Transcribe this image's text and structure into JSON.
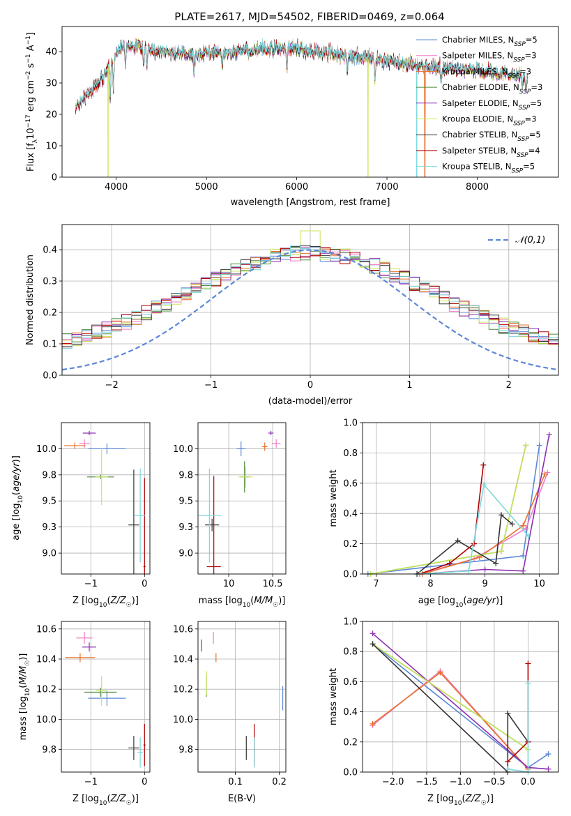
{
  "figure": {
    "title": "PLATE=2617, MJD=54502, FIBERID=0469, z=0.064",
    "series_colors": [
      "#5b87d6",
      "#f07cc4",
      "#e8702a",
      "#4f8a3a",
      "#8b2fb0",
      "#c8e65a",
      "#333333",
      "#b00000",
      "#7dd8dc"
    ]
  },
  "chart_data": [
    {
      "id": "spectrum",
      "type": "line",
      "title": "PLATE=2617, MJD=54502, FIBERID=0469, z=0.064",
      "xlabel": "wavelength [Angstrom, rest frame]",
      "ylabel": "Flux [f_λ 10^-17 erg cm^-2 s^-1 A^-1]",
      "xlim": [
        3400,
        8900
      ],
      "ylim": [
        0,
        48
      ],
      "xticks": [
        4000,
        5000,
        6000,
        7000,
        8000
      ],
      "yticks": [
        0,
        10,
        20,
        30,
        40
      ],
      "legend_position": "top-right",
      "series": [
        {
          "name": "Chabrier MILES, N_SSP=5"
        },
        {
          "name": "Salpeter MILES, N_SSP=3"
        },
        {
          "name": "Kroupa MILES, N_SSP=3"
        },
        {
          "name": "Chabrier ELODIE, N_SSP=3"
        },
        {
          "name": "Salpeter ELODIE, N_SSP=5"
        },
        {
          "name": "Kroupa ELODIE, N_SSP=3"
        },
        {
          "name": "Chabrier STELIB, N_SSP=5"
        },
        {
          "name": "Salpeter STELIB, N_SSP=4"
        },
        {
          "name": "Kroupa STELIB, N_SSP=5"
        }
      ],
      "continuum": [
        [
          3550,
          22
        ],
        [
          3700,
          27
        ],
        [
          3800,
          30
        ],
        [
          3900,
          34
        ],
        [
          4000,
          40
        ],
        [
          4100,
          42
        ],
        [
          4300,
          41
        ],
        [
          4500,
          40
        ],
        [
          4800,
          39
        ],
        [
          5000,
          39.5
        ],
        [
          5300,
          40
        ],
        [
          5600,
          40.5
        ],
        [
          5900,
          41
        ],
        [
          6200,
          40
        ],
        [
          6500,
          39
        ],
        [
          6800,
          38
        ],
        [
          7200,
          36
        ],
        [
          7600,
          35
        ],
        [
          8000,
          34
        ],
        [
          8300,
          33
        ],
        [
          8550,
          32
        ]
      ],
      "absorption_lines": [
        [
          3934,
          13
        ],
        [
          3969,
          11
        ],
        [
          4102,
          6
        ],
        [
          4305,
          6
        ],
        [
          4340,
          6
        ],
        [
          4861,
          5
        ],
        [
          5175,
          5
        ],
        [
          5270,
          3
        ],
        [
          5890,
          7
        ],
        [
          6563,
          5
        ],
        [
          6867,
          7
        ],
        [
          7600,
          4
        ],
        [
          8500,
          4
        ],
        [
          8542,
          5
        ],
        [
          8662,
          4
        ]
      ],
      "dropouts": [
        [
          3910,
          "#c8e65a"
        ],
        [
          6790,
          "#c8e65a"
        ],
        [
          7330,
          "#7dd8dc"
        ],
        [
          7420,
          "#e8702a"
        ]
      ]
    },
    {
      "id": "residual-histogram",
      "type": "histogram",
      "xlabel": "(data-model)/error",
      "ylabel": "Normed distribution",
      "xlim": [
        -2.5,
        2.5
      ],
      "ylim": [
        0,
        0.48
      ],
      "xticks": [
        -2,
        -1,
        0,
        1,
        2
      ],
      "yticks": [
        0.0,
        0.1,
        0.2,
        0.3,
        0.4
      ],
      "legend_position": "top-right",
      "reference_curve": {
        "name": "𝒩(0,1)",
        "mean": 0,
        "sd": 1
      },
      "bin_width": 0.1
    },
    {
      "id": "age-vs-Z",
      "type": "scatter",
      "xlabel": "Z [log10(Z/Z☉)]",
      "ylabel": "age [log10(age/yr)]",
      "xlim": [
        -1.55,
        0.1
      ],
      "ylim": [
        8.8,
        10.25
      ],
      "xticks": [
        -1,
        0
      ],
      "yticks": [
        9.0,
        9.25,
        9.5,
        9.75,
        10.0
      ],
      "points": [
        {
          "series": 0,
          "x": -0.7,
          "y": 10.0,
          "xerr": 0.35,
          "yerr": 0.05
        },
        {
          "series": 1,
          "x": -1.12,
          "y": 10.05,
          "xerr": 0.1,
          "yerr": 0.04
        },
        {
          "series": 2,
          "x": -1.3,
          "y": 10.03,
          "xerr": 0.2,
          "yerr": 0.03
        },
        {
          "series": 3,
          "x": -0.82,
          "y": 9.73,
          "xerr": 0.25,
          "yerr": 0.02
        },
        {
          "series": 4,
          "x": -1.03,
          "y": 10.15,
          "xerr": 0.12,
          "yerr": 0.02
        },
        {
          "series": 5,
          "x": -0.8,
          "y": 9.73,
          "xerr": 0.12,
          "yerr": 0.27
        },
        {
          "series": 6,
          "x": -0.2,
          "y": 9.27,
          "xerr": 0.1,
          "yerr": 0.53
        },
        {
          "series": 7,
          "x": 0.0,
          "y": 8.87,
          "xerr": 0.02,
          "yerr": 0.85
        },
        {
          "series": 8,
          "x": -0.08,
          "y": 9.36,
          "xerr": 0.1,
          "yerr": 0.45
        }
      ]
    },
    {
      "id": "age-vs-mass",
      "type": "scatter",
      "xlabel": "mass [log10(M/M☉)]",
      "ylabel": "",
      "xlim": [
        9.65,
        10.65
      ],
      "ylim": [
        8.8,
        10.25
      ],
      "xticks": [
        10.0,
        10.5
      ],
      "yticks": [
        9.0,
        9.25,
        9.5,
        9.75,
        10.0
      ],
      "points": [
        {
          "series": 0,
          "x": 10.14,
          "y": 10.0,
          "xerr": 0.05,
          "yerr": 0.07
        },
        {
          "series": 1,
          "x": 10.54,
          "y": 10.05,
          "xerr": 0.05,
          "yerr": 0.04
        },
        {
          "series": 2,
          "x": 10.41,
          "y": 10.02,
          "xerr": 0.03,
          "yerr": 0.04
        },
        {
          "series": 3,
          "x": 10.18,
          "y": 9.73,
          "xerr": 0.05,
          "yerr": 0.15
        },
        {
          "series": 4,
          "x": 10.48,
          "y": 10.15,
          "xerr": 0.03,
          "yerr": 0.02
        },
        {
          "series": 5,
          "x": 10.19,
          "y": 9.73,
          "xerr": 0.08,
          "yerr": 0.1
        },
        {
          "series": 6,
          "x": 9.81,
          "y": 9.27,
          "xerr": 0.08,
          "yerr": 0.06
        },
        {
          "series": 7,
          "x": 9.83,
          "y": 8.87,
          "xerr": 0.08,
          "yerr": 0.87
        },
        {
          "series": 8,
          "x": 9.78,
          "y": 9.36,
          "xerr": 0.14,
          "yerr": 0.45
        }
      ]
    },
    {
      "id": "mass-weight-vs-age",
      "type": "line",
      "xlabel": "age [log10(age/yr)]",
      "ylabel": "mass weight",
      "xlim": [
        6.75,
        10.35
      ],
      "ylim": [
        0,
        1
      ],
      "xticks": [
        7,
        8,
        9,
        10
      ],
      "yticks": [
        0.0,
        0.2,
        0.4,
        0.6,
        0.8,
        1.0
      ],
      "series": [
        {
          "series": 0,
          "x": [
            6.85,
            9.7,
            10.0
          ],
          "y": [
            0.0,
            0.12,
            0.85
          ]
        },
        {
          "series": 1,
          "x": [
            7.8,
            8.8,
            9.75,
            10.15
          ],
          "y": [
            0.0,
            0.1,
            0.3,
            0.67
          ]
        },
        {
          "series": 2,
          "x": [
            7.85,
            8.9,
            9.7,
            10.1
          ],
          "y": [
            0.0,
            0.11,
            0.32,
            0.66
          ]
        },
        {
          "series": 3,
          "x": [
            6.9,
            9.3,
            9.75
          ],
          "y": [
            0.0,
            0.15,
            0.85
          ]
        },
        {
          "series": 4,
          "x": [
            7.8,
            9.0,
            9.7,
            10.18
          ],
          "y": [
            0.0,
            0.03,
            0.02,
            0.92
          ]
        },
        {
          "series": 5,
          "x": [
            6.9,
            9.3,
            9.75
          ],
          "y": [
            0.0,
            0.15,
            0.85
          ]
        },
        {
          "series": 6,
          "x": [
            7.75,
            8.5,
            9.2,
            9.3,
            9.5
          ],
          "y": [
            0.0,
            0.22,
            0.07,
            0.39,
            0.33
          ]
        },
        {
          "series": 7,
          "x": [
            7.8,
            8.35,
            8.8,
            8.97
          ],
          "y": [
            0.0,
            0.07,
            0.2,
            0.72
          ]
        },
        {
          "series": 8,
          "x": [
            7.8,
            8.7,
            8.98,
            9.8
          ],
          "y": [
            0.0,
            0.02,
            0.59,
            0.25
          ]
        }
      ]
    },
    {
      "id": "mass-vs-Z",
      "type": "scatter",
      "xlabel": "Z [log10(Z/Z☉)]",
      "ylabel": "mass [log10(M/M☉)]",
      "xlim": [
        -1.55,
        0.1
      ],
      "ylim": [
        9.65,
        10.65
      ],
      "xticks": [
        -1,
        0
      ],
      "yticks": [
        9.8,
        10.0,
        10.2,
        10.4,
        10.6
      ],
      "points": [
        {
          "series": 0,
          "x": -0.7,
          "y": 10.14,
          "xerr": 0.35,
          "yerr": 0.05
        },
        {
          "series": 1,
          "x": -1.12,
          "y": 10.54,
          "xerr": 0.15,
          "yerr": 0.04
        },
        {
          "series": 2,
          "x": -1.2,
          "y": 10.41,
          "xerr": 0.28,
          "yerr": 0.03
        },
        {
          "series": 3,
          "x": -0.82,
          "y": 10.18,
          "xerr": 0.3,
          "yerr": 0.03
        },
        {
          "series": 4,
          "x": -1.03,
          "y": 10.48,
          "xerr": 0.13,
          "yerr": 0.03
        },
        {
          "series": 5,
          "x": -0.8,
          "y": 10.19,
          "xerr": 0.1,
          "yerr": 0.1
        },
        {
          "series": 6,
          "x": -0.2,
          "y": 9.81,
          "xerr": 0.1,
          "yerr": 0.08
        },
        {
          "series": 7,
          "x": 0.0,
          "y": 9.83,
          "xerr": 0.02,
          "yerr": 0.14
        },
        {
          "series": 8,
          "x": -0.08,
          "y": 9.78,
          "xerr": 0.05,
          "yerr": 0.1
        }
      ]
    },
    {
      "id": "mass-vs-EBV",
      "type": "scatter",
      "xlabel": "E(B-V)",
      "ylabel": "",
      "xlim": [
        0.015,
        0.215
      ],
      "ylim": [
        9.65,
        10.65
      ],
      "xticks": [
        0.1,
        0.2
      ],
      "yticks": [
        9.8,
        10.0,
        10.2,
        10.4,
        10.6
      ],
      "points": [
        {
          "series": 0,
          "x": 0.208,
          "y": 10.14,
          "xerr": 0.0,
          "yerr": 0.08
        },
        {
          "series": 1,
          "x": 0.05,
          "y": 10.54,
          "xerr": 0.0,
          "yerr": 0.04
        },
        {
          "series": 2,
          "x": 0.056,
          "y": 10.41,
          "xerr": 0.0,
          "yerr": 0.03
        },
        {
          "series": 3,
          "x": 0.034,
          "y": 10.22,
          "xerr": 0.0,
          "yerr": 0.07
        },
        {
          "series": 4,
          "x": 0.023,
          "y": 10.49,
          "xerr": 0.0,
          "yerr": 0.04
        },
        {
          "series": 5,
          "x": 0.034,
          "y": 10.24,
          "xerr": 0.0,
          "yerr": 0.08
        },
        {
          "series": 6,
          "x": 0.125,
          "y": 9.81,
          "xerr": 0.0,
          "yerr": 0.08
        },
        {
          "series": 7,
          "x": 0.143,
          "y": 9.83,
          "xerr": 0.0,
          "yerr": 0.14
        },
        {
          "series": 8,
          "x": 0.143,
          "y": 9.78,
          "xerr": 0.0,
          "yerr": 0.1
        }
      ]
    },
    {
      "id": "mass-weight-vs-Z",
      "type": "line",
      "xlabel": "Z [log10(Z/Z☉)]",
      "ylabel": "mass weight",
      "xlim": [
        -2.45,
        0.45
      ],
      "ylim": [
        0,
        1
      ],
      "xticks": [
        -2.0,
        -1.5,
        -1.0,
        -0.5,
        0.0
      ],
      "yticks": [
        0.0,
        0.2,
        0.4,
        0.6,
        0.8,
        1.0
      ],
      "series": [
        {
          "series": 0,
          "x": [
            -2.3,
            0.0,
            0.3
          ],
          "y": [
            0.85,
            0.03,
            0.12
          ]
        },
        {
          "series": 1,
          "x": [
            -2.3,
            -1.3,
            0.0
          ],
          "y": [
            0.31,
            0.67,
            0.02
          ]
        },
        {
          "series": 2,
          "x": [
            -2.3,
            -1.3,
            0.0
          ],
          "y": [
            0.32,
            0.66,
            0.02
          ]
        },
        {
          "series": 3,
          "x": [
            -2.3,
            0.0
          ],
          "y": [
            0.85,
            0.15
          ]
        },
        {
          "series": 4,
          "x": [
            -2.3,
            0.0,
            0.3
          ],
          "y": [
            0.92,
            0.03,
            0.02
          ]
        },
        {
          "series": 5,
          "x": [
            -2.3,
            0.0
          ],
          "y": [
            0.85,
            0.15
          ]
        },
        {
          "series": 6,
          "x": [
            -2.3,
            -0.3,
            -0.3,
            0.0
          ],
          "y": [
            0.85,
            0.0,
            0.39,
            0.2
          ]
        },
        {
          "series": 7,
          "x": [
            -0.3,
            0.0,
            0.0
          ],
          "y": [
            0.07,
            0.2,
            0.72
          ]
        },
        {
          "series": 8,
          "x": [
            -0.3,
            0.0,
            0.0
          ],
          "y": [
            0.02,
            0.0,
            0.59
          ]
        }
      ]
    }
  ]
}
